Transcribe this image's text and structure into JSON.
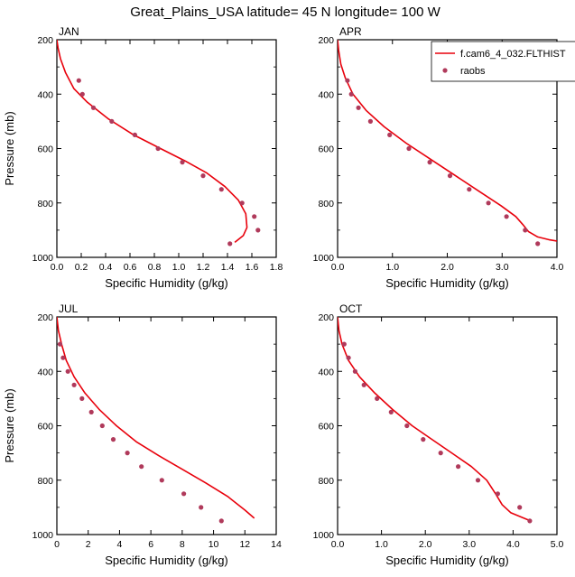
{
  "figure": {
    "title": "Great_Plains_USA  latitude= 45 N longitude= 100 W"
  },
  "colors": {
    "model": "#e8000b",
    "obs": "#b03a5b",
    "axis": "#000000"
  },
  "legend": {
    "placement": "top-right of APR panel",
    "model_label": "f.cam6_4_032.FLTHIST",
    "obs_label": "raobs"
  },
  "chart_data": [
    {
      "type": "line",
      "panel": "JAN",
      "xlabel": "Specific Humidity (g/kg)",
      "ylabel": "Pressure (mb)",
      "xlim": [
        0,
        1.8
      ],
      "xticks": [
        0.0,
        0.4,
        0.8,
        1.2,
        1.6
      ],
      "xtick_labels": [
        "0.0",
        "0.4",
        "0.8",
        "1.2",
        "1.6"
      ],
      "minor_xticks": [
        0.2,
        0.6,
        1.0,
        1.4,
        1.8
      ],
      "minor_xtick_labels": [
        "0.2",
        "0.6",
        "1.0",
        "1.4",
        "1.8"
      ],
      "ylim": [
        200,
        1000
      ],
      "y_reversed": true,
      "yticks": [
        200,
        400,
        600,
        800,
        1000
      ],
      "series": [
        {
          "name": "f.cam6_4_032.FLTHIST",
          "kind": "line",
          "x": [
            0.0,
            0.01,
            0.03,
            0.07,
            0.14,
            0.25,
            0.42,
            0.63,
            0.85,
            1.05,
            1.23,
            1.38,
            1.49,
            1.55,
            1.56,
            1.53,
            1.46
          ],
          "y": [
            200,
            230,
            270,
            320,
            380,
            430,
            490,
            550,
            600,
            645,
            690,
            740,
            790,
            840,
            890,
            920,
            945
          ]
        },
        {
          "name": "raobs",
          "kind": "scatter",
          "x": [
            0.18,
            0.21,
            0.3,
            0.45,
            0.64,
            0.83,
            1.03,
            1.2,
            1.35,
            1.52,
            1.62,
            1.65,
            1.42
          ],
          "y": [
            350,
            400,
            450,
            500,
            550,
            600,
            650,
            700,
            750,
            800,
            850,
            900,
            950
          ]
        }
      ]
    },
    {
      "type": "line",
      "panel": "APR",
      "xlabel": "Specific Humidity (g/kg)",
      "ylabel": "",
      "xlim": [
        0,
        4.0
      ],
      "xticks": [
        0.0,
        1.0,
        2.0,
        3.0,
        4.0
      ],
      "xtick_labels": [
        "0.0",
        "1.0",
        "2.0",
        "3.0",
        "4.0"
      ],
      "ylim": [
        200,
        1000
      ],
      "y_reversed": true,
      "yticks": [
        200,
        400,
        600,
        800,
        1000
      ],
      "series": [
        {
          "name": "f.cam6_4_032.FLTHIST",
          "kind": "line",
          "x": [
            0.0,
            0.02,
            0.06,
            0.14,
            0.28,
            0.52,
            0.85,
            1.25,
            1.7,
            2.15,
            2.6,
            2.98,
            3.25,
            3.38,
            3.48,
            3.65,
            3.85,
            4.0
          ],
          "y": [
            200,
            240,
            290,
            340,
            400,
            460,
            520,
            580,
            640,
            700,
            760,
            810,
            850,
            880,
            905,
            925,
            935,
            940
          ]
        },
        {
          "name": "raobs",
          "kind": "scatter",
          "x": [
            0.18,
            0.25,
            0.38,
            0.6,
            0.95,
            1.3,
            1.68,
            2.05,
            2.4,
            2.75,
            3.08,
            3.42,
            3.65
          ],
          "y": [
            350,
            400,
            450,
            500,
            550,
            600,
            650,
            700,
            750,
            800,
            850,
            900,
            950
          ]
        }
      ]
    },
    {
      "type": "line",
      "panel": "JUL",
      "xlabel": "Specific Humidity (g/kg)",
      "ylabel": "Pressure (mb)",
      "xlim": [
        0,
        14
      ],
      "xticks": [
        0,
        2,
        4,
        6,
        8,
        10,
        12,
        14
      ],
      "xtick_labels": [
        "0",
        "2",
        "4",
        "6",
        "8",
        "10",
        "12",
        "14"
      ],
      "ylim": [
        200,
        1000
      ],
      "y_reversed": true,
      "yticks": [
        200,
        400,
        600,
        800,
        1000
      ],
      "series": [
        {
          "name": "f.cam6_4_032.FLTHIST",
          "kind": "line",
          "x": [
            0.0,
            0.1,
            0.3,
            0.6,
            1.1,
            1.8,
            2.7,
            3.8,
            5.1,
            6.5,
            8.0,
            9.5,
            10.9,
            12.0,
            12.6
          ],
          "y": [
            200,
            250,
            300,
            360,
            420,
            480,
            540,
            600,
            660,
            710,
            760,
            810,
            860,
            910,
            940
          ]
        },
        {
          "name": "raobs",
          "kind": "scatter",
          "x": [
            0.2,
            0.4,
            0.7,
            1.1,
            1.6,
            2.2,
            2.9,
            3.6,
            4.5,
            5.4,
            6.7,
            8.1,
            9.2,
            10.5
          ],
          "y": [
            300,
            350,
            400,
            450,
            500,
            550,
            600,
            650,
            700,
            750,
            800,
            850,
            900,
            950
          ]
        }
      ]
    },
    {
      "type": "line",
      "panel": "OCT",
      "xlabel": "Specific Humidity (g/kg)",
      "ylabel": "",
      "xlim": [
        0,
        5.0
      ],
      "xticks": [
        0.0,
        1.0,
        2.0,
        3.0,
        4.0,
        5.0
      ],
      "xtick_labels": [
        "0.0",
        "1.0",
        "2.0",
        "3.0",
        "4.0",
        "5.0"
      ],
      "ylim": [
        200,
        1000
      ],
      "y_reversed": true,
      "yticks": [
        200,
        400,
        600,
        800,
        1000
      ],
      "series": [
        {
          "name": "f.cam6_4_032.FLTHIST",
          "kind": "line",
          "x": [
            0.0,
            0.03,
            0.1,
            0.25,
            0.5,
            0.85,
            1.25,
            1.7,
            2.15,
            2.6,
            3.05,
            3.4,
            3.6,
            3.75,
            3.95,
            4.25,
            4.4
          ],
          "y": [
            200,
            250,
            300,
            360,
            420,
            480,
            540,
            600,
            650,
            700,
            750,
            800,
            850,
            890,
            920,
            940,
            950
          ]
        },
        {
          "name": "raobs",
          "kind": "scatter",
          "x": [
            0.15,
            0.25,
            0.4,
            0.6,
            0.9,
            1.22,
            1.58,
            1.95,
            2.35,
            2.75,
            3.2,
            3.65,
            4.15,
            4.38
          ],
          "y": [
            300,
            350,
            400,
            450,
            500,
            550,
            600,
            650,
            700,
            750,
            800,
            850,
            900,
            950
          ]
        }
      ]
    }
  ]
}
